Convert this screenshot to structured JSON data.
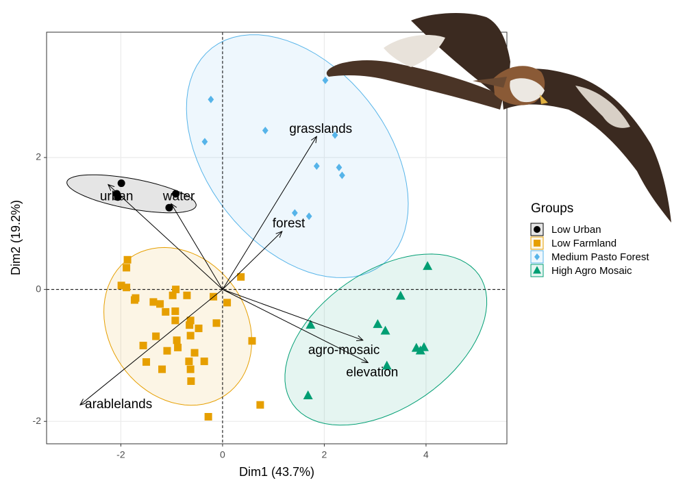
{
  "chart_data": {
    "type": "scatter",
    "x_label": "Dim1 (43.7%)",
    "y_label": "Dim2 (19.2%)",
    "xlim": [
      -3.46,
      5.59
    ],
    "ylim": [
      -2.34,
      3.9
    ],
    "xticks": [
      -2,
      0,
      2,
      4
    ],
    "yticks": [
      -2,
      0,
      2
    ],
    "grid": true,
    "reference_lines": {
      "x": 0,
      "y": 0
    },
    "legend_title": "Groups",
    "legend_position": "right",
    "series": [
      {
        "name": "Low Urban",
        "color": "#000000",
        "shape": "circle",
        "x": [
          -1.99,
          -2.08,
          -2.06,
          -0.92,
          -1.05
        ],
        "y": [
          1.61,
          1.45,
          1.4,
          1.45,
          1.24
        ],
        "ellipse": {
          "center": [
            -1.79,
            1.45
          ],
          "axis1": [
            1.27,
            -0.18
          ],
          "axis2": [
            -0.05,
            -0.225
          ]
        }
      },
      {
        "name": "Low Farmland",
        "color": "#E69F00",
        "shape": "square",
        "x": [
          -1.87,
          -1.89,
          -1.99,
          -1.89,
          -1.71,
          -1.73,
          -1.36,
          -1.23,
          -1.12,
          -0.93,
          -0.92,
          -0.98,
          -0.7,
          -0.93,
          -0.63,
          -0.65,
          -0.47,
          -0.63,
          -0.18,
          -0.12,
          0.09,
          0.36,
          0.58,
          0.74,
          -0.28,
          -0.36,
          -0.66,
          -0.63,
          -0.62,
          -0.55,
          -1.19,
          -1.09,
          -1.5,
          -1.56,
          -1.31,
          -0.9,
          -0.88
        ],
        "y": [
          0.45,
          0.33,
          0.06,
          0.03,
          -0.13,
          -0.16,
          -0.19,
          -0.22,
          -0.34,
          -0.33,
          0.0,
          -0.09,
          -0.09,
          -0.47,
          -0.47,
          -0.54,
          -0.59,
          -0.7,
          -0.11,
          -0.51,
          -0.2,
          0.19,
          -0.78,
          -1.75,
          -1.93,
          -1.09,
          -1.09,
          -1.21,
          -1.39,
          -0.96,
          -1.21,
          -0.93,
          -1.1,
          -0.85,
          -0.71,
          -0.77,
          -0.88
        ],
        "ellipse": {
          "center": [
            -0.88,
            -0.56
          ],
          "axis1": [
            0.94,
            -1.04
          ],
          "axis2": [
            1.11,
            0.59
          ]
        }
      },
      {
        "name": "Medium Pasto Forest",
        "color": "#56B4E9",
        "shape": "diamond",
        "x": [
          -0.23,
          -0.35,
          0.84,
          2.02,
          2.21,
          1.85,
          2.29,
          2.35,
          1.42,
          1.7
        ],
        "y": [
          2.88,
          2.24,
          2.41,
          3.17,
          2.34,
          1.87,
          1.85,
          1.73,
          1.16,
          1.11
        ],
        "ellipse": {
          "center": [
            1.47,
            2.02
          ],
          "axis1": [
            1.68,
            -1.64
          ],
          "axis2": [
            1.39,
            0.84
          ]
        }
      },
      {
        "name": "High Agro Mosaic",
        "color": "#009E73",
        "shape": "triangle",
        "x": [
          4.03,
          3.5,
          3.05,
          3.2,
          1.73,
          3.81,
          3.89,
          3.96,
          3.23,
          1.68
        ],
        "y": [
          0.35,
          -0.1,
          -0.53,
          -0.63,
          -0.54,
          -0.89,
          -0.93,
          -0.88,
          -1.16,
          -1.61
        ],
        "ellipse": {
          "center": [
            3.21,
            -0.76
          ],
          "axis1": [
            1.83,
            0.98
          ],
          "axis2": [
            0.77,
            -0.85
          ]
        }
      }
    ],
    "variables": [
      {
        "name": "urban",
        "x": -2.25,
        "y": 1.59
      },
      {
        "name": "water",
        "x": -1.01,
        "y": 1.3
      },
      {
        "name": "grasslands",
        "x": 1.85,
        "y": 2.32
      },
      {
        "name": "forest",
        "x": 1.17,
        "y": 0.88
      },
      {
        "name": "agro-mosaic",
        "x": 2.76,
        "y": -0.77
      },
      {
        "name": "elevation",
        "x": 2.86,
        "y": -1.11
      },
      {
        "name": "arablelands",
        "x": -2.8,
        "y": -1.75
      }
    ]
  }
}
